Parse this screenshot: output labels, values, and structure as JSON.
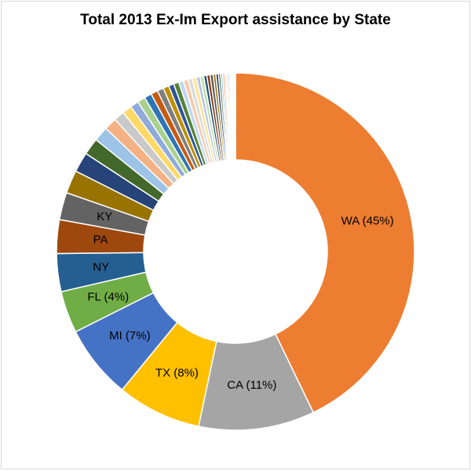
{
  "chart_data": {
    "type": "pie",
    "variant": "donut",
    "title": "Total 2013 Ex-Im Export assistance by State",
    "categories": [
      "WA",
      "CA",
      "TX",
      "MI",
      "FL",
      "NY",
      "PA",
      "KY"
    ],
    "values": [
      45,
      11,
      8,
      7,
      4,
      3.6,
      3.2,
      2.6
    ],
    "slice_labels": [
      "WA (45%)",
      "CA (11%)",
      "TX (8%)",
      "MI (7%)",
      "FL (4%)",
      "NY",
      "PA",
      "KY"
    ],
    "colors": [
      "#ED7D31",
      "#A5A5A5",
      "#FFC000",
      "#4472C4",
      "#70AD47",
      "#255E91",
      "#9E480E",
      "#636363"
    ],
    "other_small_slices": [
      2.2,
      1.9,
      1.6,
      1.4,
      1.2,
      1.0,
      0.9,
      0.8,
      0.75,
      0.7,
      0.65,
      0.6,
      0.55,
      0.5,
      0.5,
      0.45,
      0.45,
      0.4,
      0.4,
      0.35,
      0.35,
      0.3,
      0.3,
      0.3,
      0.25,
      0.25,
      0.2,
      0.2,
      0.2,
      0.15,
      0.15,
      0.15,
      0.1,
      0.1,
      0.1,
      0.1,
      0.05,
      0.05,
      0.05
    ],
    "other_colors": [
      "#997300",
      "#264478",
      "#43682B",
      "#9DC3E6",
      "#F4B183",
      "#C9C9C9",
      "#FFD966",
      "#8FAADC",
      "#A9D18E",
      "#2E75B6",
      "#C55A11",
      "#7F7F7F",
      "#BF9000",
      "#2F5597",
      "#548235",
      "#BDD7EE",
      "#F8CBAD",
      "#DBDBDB",
      "#FFE699",
      "#B4C7E7",
      "#C5E0B4",
      "#1F4E79",
      "#843C0C",
      "#595959"
    ],
    "legend": "none"
  }
}
